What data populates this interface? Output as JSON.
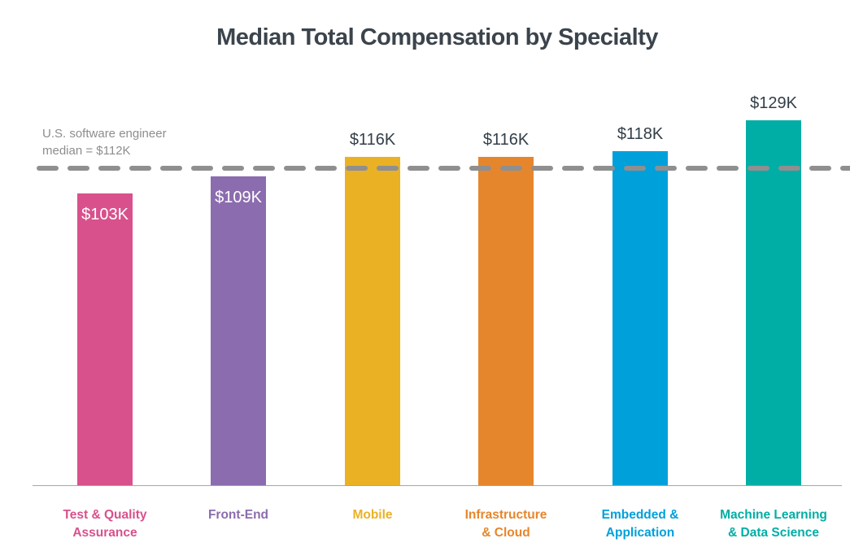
{
  "page": {
    "background_color": "#ffffff"
  },
  "note": {
    "line1": "U.S. software engineer",
    "line2": "median = $112K",
    "color": "#8d8d8d"
  },
  "chart_data": {
    "type": "bar",
    "title": "Median Total Compensation by Specialty",
    "title_color": "#3b444c",
    "categories": [
      "Test & Quality Assurance",
      "Front-End",
      "Mobile",
      "Infrastructure & Cloud",
      "Embedded & Application",
      "Machine Learning & Data Science"
    ],
    "category_label_lines": [
      [
        "Test & Quality",
        "Assurance"
      ],
      [
        "Front-End"
      ],
      [
        "Mobile"
      ],
      [
        "Infrastructure",
        "& Cloud"
      ],
      [
        "Embedded &",
        "Application"
      ],
      [
        "Machine Learning",
        "& Data Science"
      ]
    ],
    "values": [
      103,
      109,
      116,
      116,
      118,
      129
    ],
    "value_labels": [
      "$103K",
      "$109K",
      "$116K",
      "$116K",
      "$118K",
      "$129K"
    ],
    "value_label_placement": [
      "inside",
      "inside",
      "above",
      "above",
      "above",
      "above"
    ],
    "value_label_color_above": "#333e48",
    "value_label_color_inside": "#ffffff",
    "bar_colors": [
      "#d8518c",
      "#8b6cae",
      "#ebb125",
      "#e6862c",
      "#00a0db",
      "#00aea5"
    ],
    "units": "USD thousands (K) per year",
    "xlabel": "",
    "ylabel": "",
    "ylim": [
      0,
      140
    ],
    "grid": false,
    "legend": false,
    "reference_line": {
      "value": 112,
      "label": "U.S. software engineer median = $112K",
      "style": "dashed",
      "color": "#8f8f8f"
    },
    "x_axis_line_color": "#a6a6a6"
  }
}
